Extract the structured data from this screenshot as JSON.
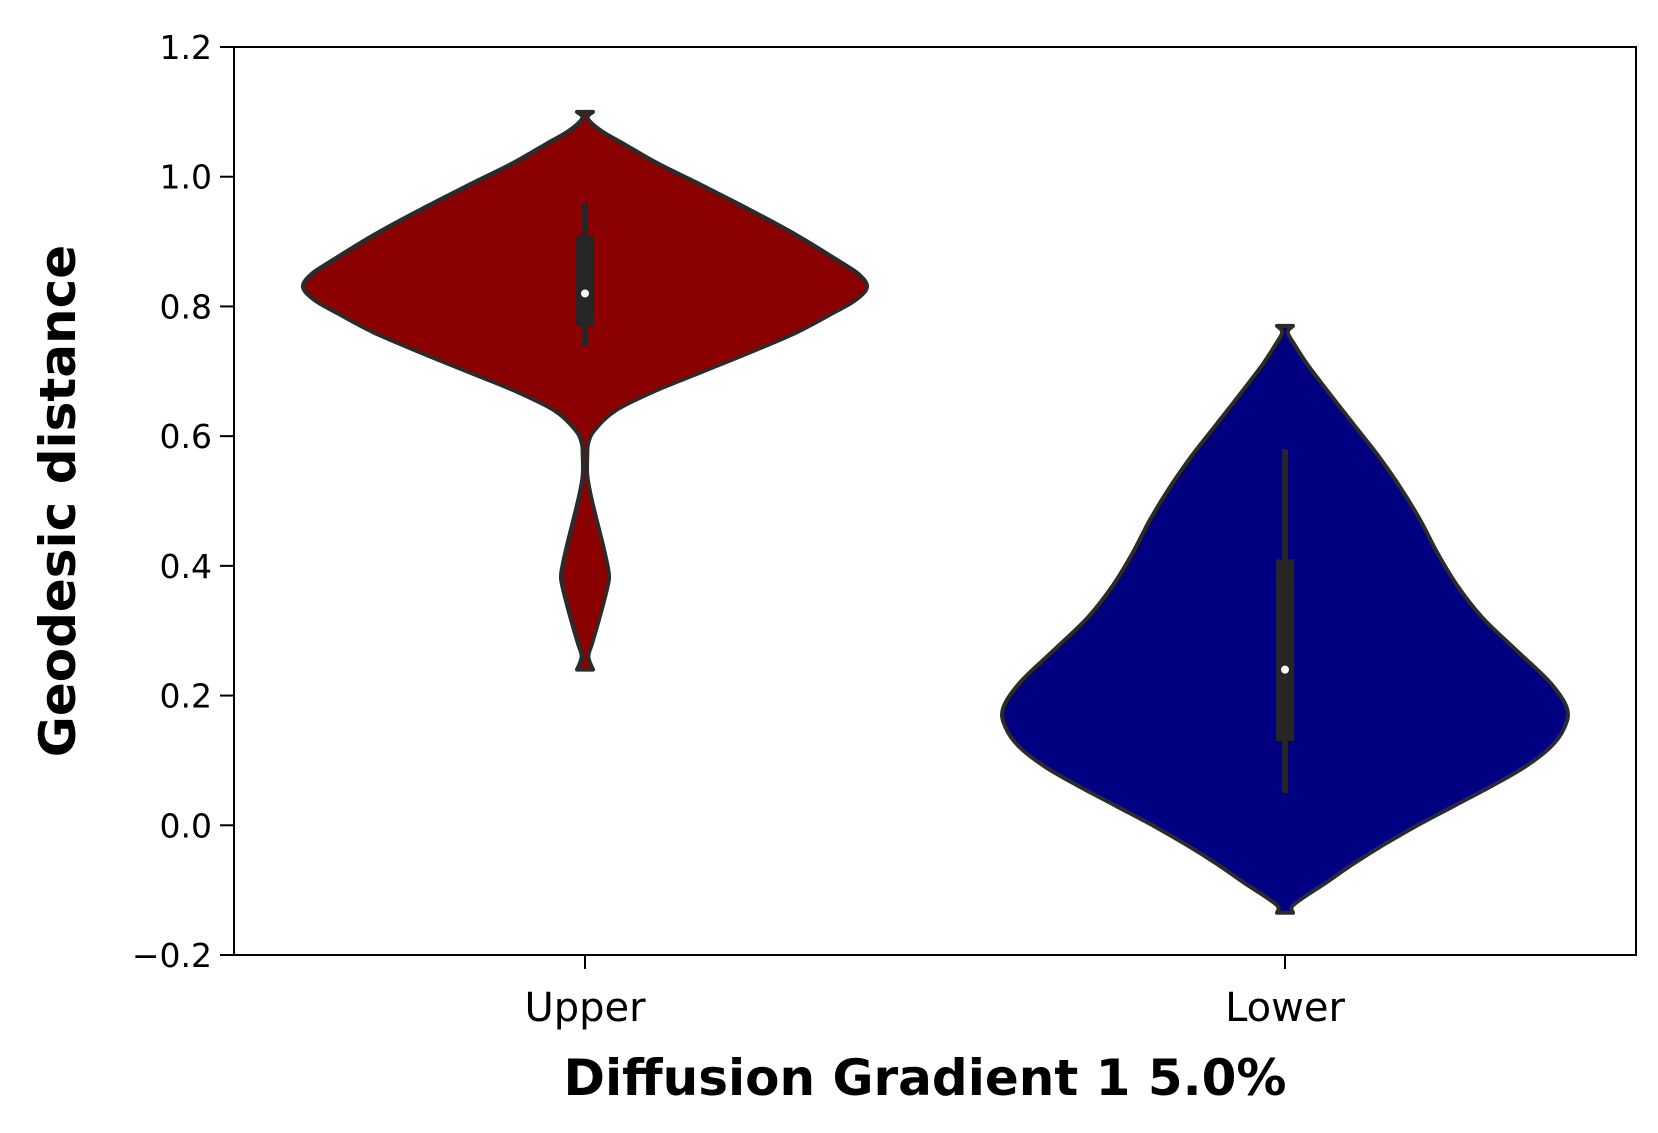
{
  "chart_data": {
    "type": "violin",
    "xlabel": "Diffusion Gradient 1 5.0%",
    "ylabel": "Geodesic distance",
    "ylim": [
      -0.2,
      1.2
    ],
    "yticks": [
      -0.2,
      0.0,
      0.2,
      0.4,
      0.6,
      0.8,
      1.0,
      1.2
    ],
    "ytick_labels": [
      "−0.2",
      "0.0",
      "0.2",
      "0.4",
      "0.6",
      "0.8",
      "1.0",
      "1.2"
    ],
    "categories": [
      "Upper",
      "Lower"
    ],
    "grid": false,
    "series": [
      {
        "category": "Upper",
        "color": "#8b0000",
        "density_profile": [
          [
            1.1,
            0.0
          ],
          [
            1.09,
            0.01
          ],
          [
            1.07,
            0.06
          ],
          [
            1.05,
            0.14
          ],
          [
            1.02,
            0.26
          ],
          [
            0.99,
            0.4
          ],
          [
            0.95,
            0.58
          ],
          [
            0.91,
            0.75
          ],
          [
            0.87,
            0.9
          ],
          [
            0.85,
            0.97
          ],
          [
            0.83,
            1.0
          ],
          [
            0.81,
            0.96
          ],
          [
            0.79,
            0.88
          ],
          [
            0.76,
            0.75
          ],
          [
            0.73,
            0.59
          ],
          [
            0.7,
            0.42
          ],
          [
            0.67,
            0.25
          ],
          [
            0.64,
            0.11
          ],
          [
            0.61,
            0.035
          ],
          [
            0.59,
            0.012
          ],
          [
            0.57,
            0.008
          ],
          [
            0.54,
            0.008
          ],
          [
            0.51,
            0.02
          ],
          [
            0.47,
            0.042
          ],
          [
            0.43,
            0.065
          ],
          [
            0.4,
            0.08
          ],
          [
            0.38,
            0.085
          ],
          [
            0.35,
            0.07
          ],
          [
            0.31,
            0.045
          ],
          [
            0.28,
            0.025
          ],
          [
            0.26,
            0.012
          ],
          [
            0.24,
            0.0
          ]
        ],
        "whisker_low": 0.74,
        "whisker_high": 0.96,
        "q1": 0.77,
        "q3": 0.91,
        "median": 0.82
      },
      {
        "category": "Lower",
        "color": "#000080",
        "density_profile": [
          [
            0.77,
            0.0
          ],
          [
            0.76,
            0.01
          ],
          [
            0.74,
            0.035
          ],
          [
            0.71,
            0.08
          ],
          [
            0.67,
            0.15
          ],
          [
            0.62,
            0.24
          ],
          [
            0.57,
            0.33
          ],
          [
            0.52,
            0.41
          ],
          [
            0.47,
            0.48
          ],
          [
            0.42,
            0.54
          ],
          [
            0.37,
            0.61
          ],
          [
            0.32,
            0.7
          ],
          [
            0.27,
            0.82
          ],
          [
            0.22,
            0.94
          ],
          [
            0.18,
            1.0
          ],
          [
            0.15,
            0.99
          ],
          [
            0.12,
            0.94
          ],
          [
            0.09,
            0.85
          ],
          [
            0.06,
            0.73
          ],
          [
            0.03,
            0.6
          ],
          [
            0.0,
            0.47
          ],
          [
            -0.03,
            0.35
          ],
          [
            -0.06,
            0.24
          ],
          [
            -0.09,
            0.14
          ],
          [
            -0.11,
            0.07
          ],
          [
            -0.125,
            0.025
          ],
          [
            -0.135,
            0.0
          ]
        ],
        "whisker_low": 0.05,
        "whisker_high": 0.58,
        "q1": 0.13,
        "q3": 0.41,
        "median": 0.24
      }
    ]
  }
}
